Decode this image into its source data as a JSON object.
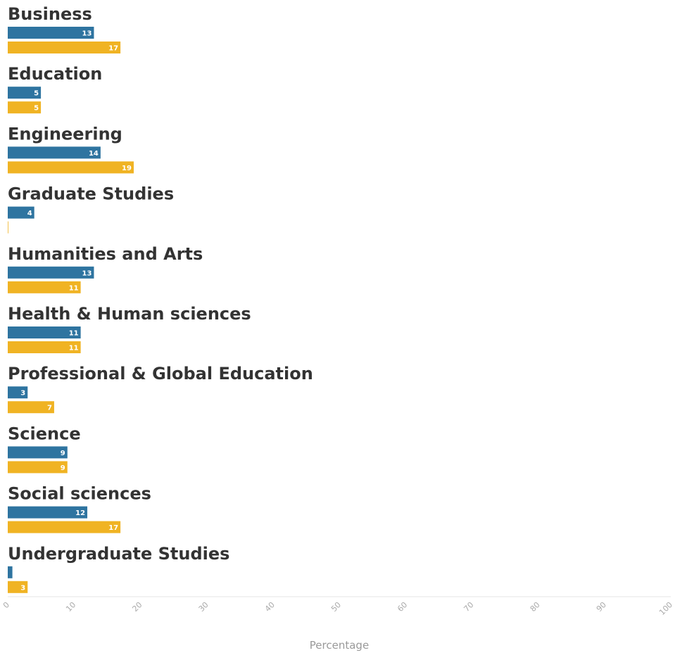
{
  "chart_data": {
    "type": "bar",
    "orientation": "horizontal",
    "categories": [
      "Business",
      "Education",
      "Engineering",
      "Graduate Studies",
      "Humanities and Arts",
      "Health & Human sciences",
      "Professional & Global Education",
      "Science",
      "Social sciences",
      "Undergraduate Studies"
    ],
    "series": [
      {
        "color": "#2e74a0",
        "values": [
          13,
          5,
          14,
          4,
          13,
          11,
          3,
          9,
          12,
          0.7
        ]
      },
      {
        "color": "#f0b323",
        "values": [
          17,
          5,
          19,
          0,
          11,
          11,
          7,
          9,
          17,
          3
        ]
      }
    ],
    "data_labels": [
      [
        "13",
        "5",
        "14",
        "4",
        "13",
        "11",
        "3",
        "9",
        "12",
        ""
      ],
      [
        "17",
        "5",
        "19",
        "",
        "11",
        "11",
        "7",
        "9",
        "17",
        "3"
      ]
    ],
    "xlabel": "Percentage",
    "xlim": [
      0,
      100
    ],
    "xticks": [
      "0",
      "10",
      "20",
      "30",
      "40",
      "50",
      "60",
      "70",
      "80",
      "90",
      "100"
    ],
    "grid": false,
    "legend": "none"
  }
}
